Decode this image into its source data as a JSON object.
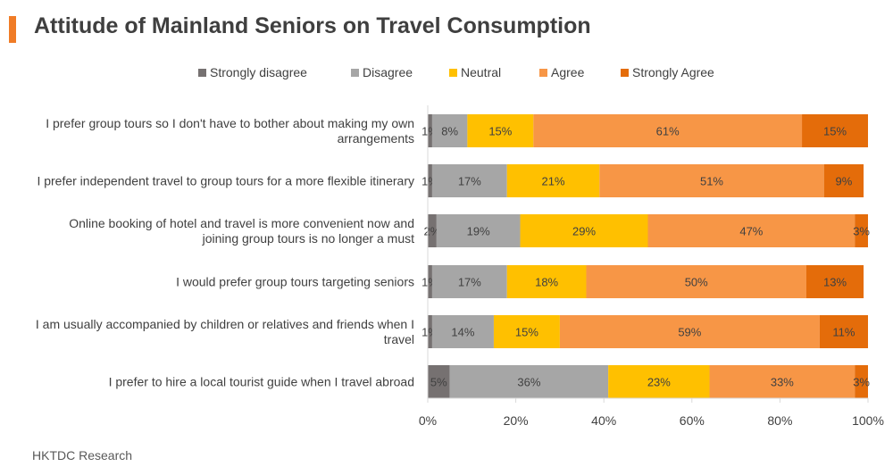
{
  "title": "Attitude of Mainland Seniors on Travel Consumption",
  "accent_color": "#f07c26",
  "source": "HKTDC Research",
  "chart_data": {
    "type": "bar",
    "orientation": "horizontal",
    "stacked": true,
    "title": "Attitude of Mainland Seniors on Travel Consumption",
    "xlabel": "",
    "ylabel": "",
    "xlim": [
      0,
      100
    ],
    "x_ticks": [
      "0%",
      "20%",
      "40%",
      "60%",
      "80%",
      "100%"
    ],
    "grid": false,
    "legend_position": "top",
    "categories": [
      [
        "I prefer group tours so I don't have to bother about making my own",
        "arrangements"
      ],
      [
        "I prefer independent travel to group tours for a more flexible itinerary"
      ],
      [
        "Online booking of hotel and travel is more convenient now and",
        "joining group tours is no longer a must"
      ],
      [
        "I would prefer group tours targeting seniors"
      ],
      [
        "I am usually accompanied by children or relatives and friends when I",
        "travel"
      ],
      [
        "I prefer to hire a local tourist guide when I travel abroad"
      ]
    ],
    "series": [
      {
        "name": "Strongly disagree",
        "color": "#767171",
        "values": [
          1,
          1,
          2,
          1,
          1,
          5
        ]
      },
      {
        "name": "Disagree",
        "color": "#a6a6a6",
        "values": [
          8,
          17,
          19,
          17,
          14,
          36
        ]
      },
      {
        "name": "Neutral",
        "color": "#ffc000",
        "values": [
          15,
          21,
          29,
          18,
          15,
          23
        ]
      },
      {
        "name": "Agree",
        "color": "#f79646",
        "values": [
          61,
          51,
          47,
          50,
          59,
          33
        ]
      },
      {
        "name": "Strongly Agree",
        "color": "#e46c0a",
        "values": [
          15,
          9,
          3,
          13,
          11,
          3
        ]
      }
    ],
    "data_labels": [
      [
        "1%",
        "8%",
        "15%",
        "61%",
        "15%"
      ],
      [
        "1%",
        "17%",
        "21%",
        "51%",
        "9%"
      ],
      [
        "2%",
        "19%",
        "29%",
        "47%",
        "3%"
      ],
      [
        "1%",
        "17%",
        "18%",
        "50%",
        "13%"
      ],
      [
        "1%",
        "14%",
        "15%",
        "59%",
        "11%"
      ],
      [
        "5%",
        "36%",
        "23%",
        "33%",
        "3%"
      ]
    ]
  }
}
